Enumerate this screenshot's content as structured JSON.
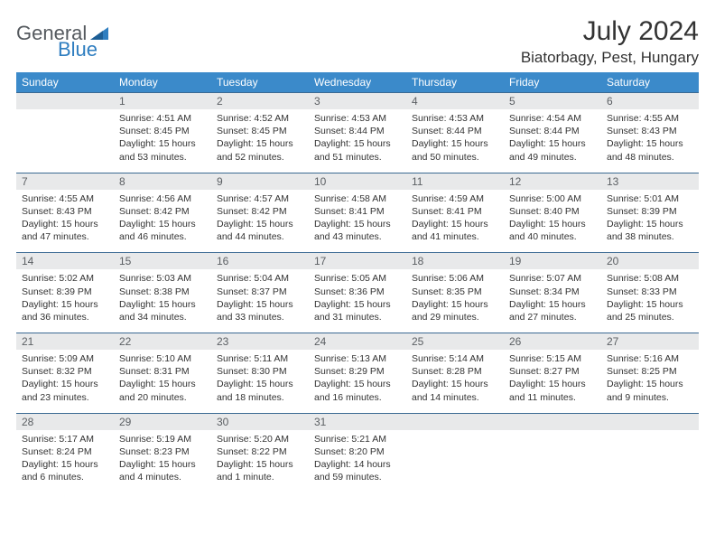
{
  "brand": {
    "part1": "General",
    "part2": "Blue"
  },
  "title": "July 2024",
  "location": "Biatorbagy, Pest, Hungary",
  "colors": {
    "header_bg": "#3b8aca",
    "header_text": "#ffffff",
    "daynum_bg": "#e8e9ea",
    "daynum_text": "#5b5f63",
    "rule": "#3b6a93",
    "body_text": "#333333",
    "logo_gray": "#555a5f",
    "logo_blue": "#2f7ec0"
  },
  "weekdays": [
    "Sunday",
    "Monday",
    "Tuesday",
    "Wednesday",
    "Thursday",
    "Friday",
    "Saturday"
  ],
  "first_weekday_index": 1,
  "days": [
    {
      "n": 1,
      "sr": "4:51 AM",
      "ss": "8:45 PM",
      "dl": "15 hours and 53 minutes."
    },
    {
      "n": 2,
      "sr": "4:52 AM",
      "ss": "8:45 PM",
      "dl": "15 hours and 52 minutes."
    },
    {
      "n": 3,
      "sr": "4:53 AM",
      "ss": "8:44 PM",
      "dl": "15 hours and 51 minutes."
    },
    {
      "n": 4,
      "sr": "4:53 AM",
      "ss": "8:44 PM",
      "dl": "15 hours and 50 minutes."
    },
    {
      "n": 5,
      "sr": "4:54 AM",
      "ss": "8:44 PM",
      "dl": "15 hours and 49 minutes."
    },
    {
      "n": 6,
      "sr": "4:55 AM",
      "ss": "8:43 PM",
      "dl": "15 hours and 48 minutes."
    },
    {
      "n": 7,
      "sr": "4:55 AM",
      "ss": "8:43 PM",
      "dl": "15 hours and 47 minutes."
    },
    {
      "n": 8,
      "sr": "4:56 AM",
      "ss": "8:42 PM",
      "dl": "15 hours and 46 minutes."
    },
    {
      "n": 9,
      "sr": "4:57 AM",
      "ss": "8:42 PM",
      "dl": "15 hours and 44 minutes."
    },
    {
      "n": 10,
      "sr": "4:58 AM",
      "ss": "8:41 PM",
      "dl": "15 hours and 43 minutes."
    },
    {
      "n": 11,
      "sr": "4:59 AM",
      "ss": "8:41 PM",
      "dl": "15 hours and 41 minutes."
    },
    {
      "n": 12,
      "sr": "5:00 AM",
      "ss": "8:40 PM",
      "dl": "15 hours and 40 minutes."
    },
    {
      "n": 13,
      "sr": "5:01 AM",
      "ss": "8:39 PM",
      "dl": "15 hours and 38 minutes."
    },
    {
      "n": 14,
      "sr": "5:02 AM",
      "ss": "8:39 PM",
      "dl": "15 hours and 36 minutes."
    },
    {
      "n": 15,
      "sr": "5:03 AM",
      "ss": "8:38 PM",
      "dl": "15 hours and 34 minutes."
    },
    {
      "n": 16,
      "sr": "5:04 AM",
      "ss": "8:37 PM",
      "dl": "15 hours and 33 minutes."
    },
    {
      "n": 17,
      "sr": "5:05 AM",
      "ss": "8:36 PM",
      "dl": "15 hours and 31 minutes."
    },
    {
      "n": 18,
      "sr": "5:06 AM",
      "ss": "8:35 PM",
      "dl": "15 hours and 29 minutes."
    },
    {
      "n": 19,
      "sr": "5:07 AM",
      "ss": "8:34 PM",
      "dl": "15 hours and 27 minutes."
    },
    {
      "n": 20,
      "sr": "5:08 AM",
      "ss": "8:33 PM",
      "dl": "15 hours and 25 minutes."
    },
    {
      "n": 21,
      "sr": "5:09 AM",
      "ss": "8:32 PM",
      "dl": "15 hours and 23 minutes."
    },
    {
      "n": 22,
      "sr": "5:10 AM",
      "ss": "8:31 PM",
      "dl": "15 hours and 20 minutes."
    },
    {
      "n": 23,
      "sr": "5:11 AM",
      "ss": "8:30 PM",
      "dl": "15 hours and 18 minutes."
    },
    {
      "n": 24,
      "sr": "5:13 AM",
      "ss": "8:29 PM",
      "dl": "15 hours and 16 minutes."
    },
    {
      "n": 25,
      "sr": "5:14 AM",
      "ss": "8:28 PM",
      "dl": "15 hours and 14 minutes."
    },
    {
      "n": 26,
      "sr": "5:15 AM",
      "ss": "8:27 PM",
      "dl": "15 hours and 11 minutes."
    },
    {
      "n": 27,
      "sr": "5:16 AM",
      "ss": "8:25 PM",
      "dl": "15 hours and 9 minutes."
    },
    {
      "n": 28,
      "sr": "5:17 AM",
      "ss": "8:24 PM",
      "dl": "15 hours and 6 minutes."
    },
    {
      "n": 29,
      "sr": "5:19 AM",
      "ss": "8:23 PM",
      "dl": "15 hours and 4 minutes."
    },
    {
      "n": 30,
      "sr": "5:20 AM",
      "ss": "8:22 PM",
      "dl": "15 hours and 1 minute."
    },
    {
      "n": 31,
      "sr": "5:21 AM",
      "ss": "8:20 PM",
      "dl": "14 hours and 59 minutes."
    }
  ],
  "labels": {
    "sunrise": "Sunrise:",
    "sunset": "Sunset:",
    "daylight": "Daylight:"
  }
}
